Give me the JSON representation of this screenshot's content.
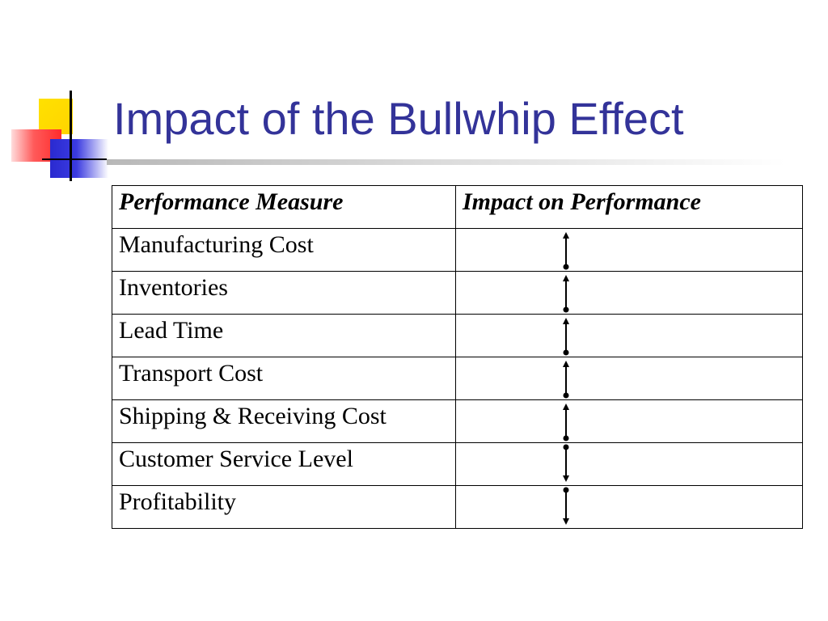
{
  "slide": {
    "title": "Impact of the Bullwhip Effect"
  },
  "table": {
    "headers": [
      "Performance Measure",
      "Impact on Performance"
    ],
    "rows": [
      {
        "measure": "Manufacturing Cost",
        "impact": "increase"
      },
      {
        "measure": "Inventories",
        "impact": "increase"
      },
      {
        "measure": "Lead Time",
        "impact": "increase"
      },
      {
        "measure": "Transport Cost",
        "impact": "increase"
      },
      {
        "measure": "Shipping & Receiving Cost",
        "impact": "increase"
      },
      {
        "measure": "Customer Service Level",
        "impact": "decrease"
      },
      {
        "measure": "Profitability",
        "impact": "decrease"
      }
    ]
  },
  "colors": {
    "title": "#333399",
    "logo_yellow": "#ffd400",
    "logo_red": "#ff2b2b",
    "logo_blue": "#2a2ad0"
  }
}
